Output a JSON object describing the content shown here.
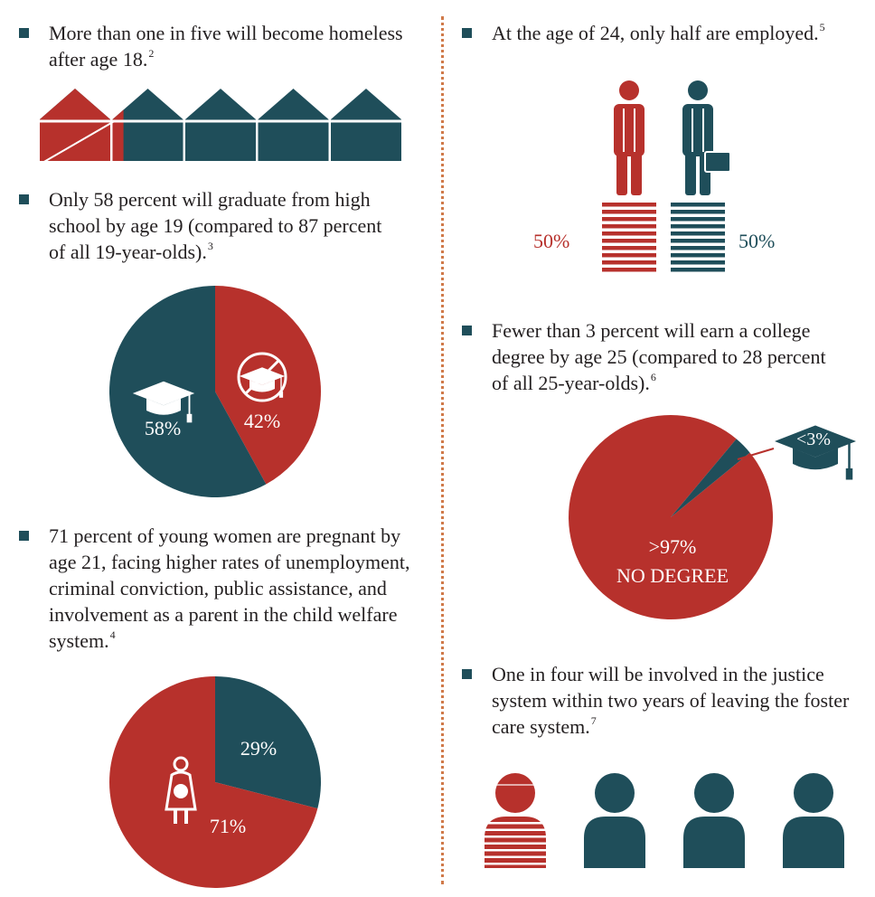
{
  "colors": {
    "red": "#b7312c",
    "teal": "#1f4e5a",
    "white": "#ffffff",
    "divider": "#d07a4a"
  },
  "stats": [
    {
      "id": "homeless",
      "text": "More than one in five will become homeless after age 18.",
      "footnote": "2"
    },
    {
      "id": "graduate",
      "text": "Only 58 percent will graduate from high school by age 19 (compared to 87 percent of all 19-year-olds).",
      "footnote": "3"
    },
    {
      "id": "pregnant",
      "text": "71 percent of young women are pregnant by age 21, facing higher rates of unemployment, criminal conviction, public assistance, and involvement as a parent in the child welfare system.",
      "footnote": "4"
    },
    {
      "id": "employed",
      "text": "At the age of 24, only half are employed.",
      "footnote": "5"
    },
    {
      "id": "college",
      "text": "Fewer than 3 percent will earn a college degree by age 25 (compared to 28 percent of all 25-year-olds).",
      "footnote": "6"
    },
    {
      "id": "justice",
      "text": "One in four will be involved in the justice system within two years of leaving the foster care system.",
      "footnote": "7"
    }
  ],
  "icons": {
    "house": "house-icon",
    "graduation_cap": "graduation-cap-icon",
    "no_cap": "no-graduation-cap-icon",
    "pregnant_woman": "pregnant-woman-icon",
    "person": "person-icon",
    "briefcase": "briefcase-icon"
  },
  "chart_data": [
    {
      "type": "pictograph",
      "unit": "house",
      "total_units": 5,
      "highlighted_units": 1.2,
      "highlight_color": "#b7312c",
      "base_color": "#1f4e5a"
    },
    {
      "type": "pie",
      "slices": [
        {
          "label": "58%",
          "value": 58,
          "color": "#1f4e5a",
          "icon": "graduation-cap-icon"
        },
        {
          "label": "42%",
          "value": 42,
          "color": "#b7312c",
          "icon": "no-graduation-cap-icon"
        }
      ]
    },
    {
      "type": "pie",
      "slices": [
        {
          "label": "29%",
          "value": 29,
          "color": "#1f4e5a"
        },
        {
          "label": "71%",
          "value": 71,
          "color": "#b7312c",
          "icon": "pregnant-woman-icon"
        }
      ]
    },
    {
      "type": "pictograph",
      "unit": "person",
      "items": [
        {
          "label": "50%",
          "value": 50,
          "color": "#b7312c"
        },
        {
          "label": "50%",
          "value": 50,
          "color": "#1f4e5a",
          "icon": "briefcase-icon"
        }
      ]
    },
    {
      "type": "pie",
      "slices": [
        {
          "label": ">97%",
          "sublabel": "NO DEGREE",
          "value": 97,
          "color": "#b7312c"
        },
        {
          "label": "<3%",
          "value": 3,
          "color": "#1f4e5a",
          "icon": "graduation-cap-icon"
        }
      ]
    },
    {
      "type": "pictograph",
      "unit": "person",
      "total_units": 4,
      "highlighted_units": 1,
      "highlight_color": "#b7312c",
      "base_color": "#1f4e5a"
    }
  ]
}
